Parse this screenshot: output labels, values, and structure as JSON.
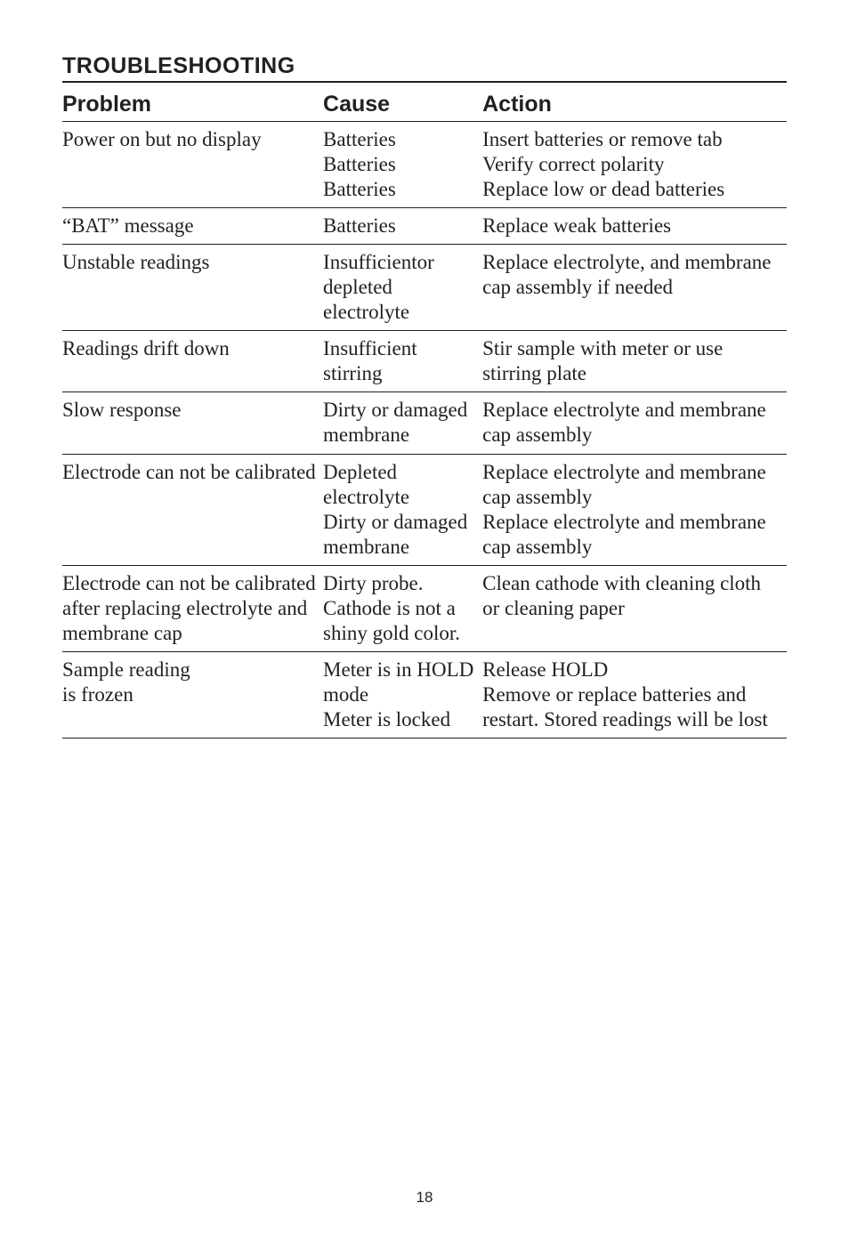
{
  "section_title": "TROUBLESHOOTING",
  "page_number": "18",
  "table": {
    "columns": [
      "Problem",
      "Cause",
      "Action"
    ],
    "col_widths_pct": [
      36,
      22,
      42
    ],
    "header_font": {
      "family": "Arial",
      "weight": 900,
      "size_pt": 25
    },
    "body_font": {
      "family": "Georgia",
      "weight": 400,
      "size_pt": 23
    },
    "border_color": "#231f20",
    "rows": [
      {
        "problem": "Power on but no display",
        "cause": "Batteries\nBatteries\nBatteries",
        "action": "Insert batteries or remove tab\nVerify correct polarity\nReplace low or dead batteries"
      },
      {
        "problem": "“BAT” message",
        "cause": "Batteries",
        "action": "Replace weak batteries"
      },
      {
        "problem": "Unstable readings",
        "cause": "Insufficientor depleted electrolyte",
        "action": "Replace electrolyte, and membrane cap assembly if needed"
      },
      {
        "problem": "Readings drift down",
        "cause": "Insufficient stirring",
        "action": "Stir sample with meter or use stirring plate"
      },
      {
        "problem": "Slow response",
        "cause": "Dirty or damaged membrane",
        "action": "Replace electrolyte and membrane cap assembly"
      },
      {
        "problem": "Electrode can not be calibrated",
        "cause": "Depleted electrolyte\nDirty or damaged membrane",
        "action": "Replace electrolyte and membrane cap assembly\nReplace electrolyte and membrane cap assembly"
      },
      {
        "problem": "Electrode can not be calibrated after replacing electrolyte and membrane cap",
        "cause": "Dirty probe. Cathode is not a shiny gold color.",
        "action": "Clean cathode with cleaning cloth or cleaning paper"
      },
      {
        "problem": "Sample reading\nis frozen",
        "cause": "Meter is in HOLD mode\nMeter is locked",
        "action": "Release HOLD\nRemove or replace batteries and restart. Stored readings will be lost"
      }
    ]
  },
  "colors": {
    "text": "#231f20",
    "background": "#ffffff",
    "rule": "#231f20"
  }
}
